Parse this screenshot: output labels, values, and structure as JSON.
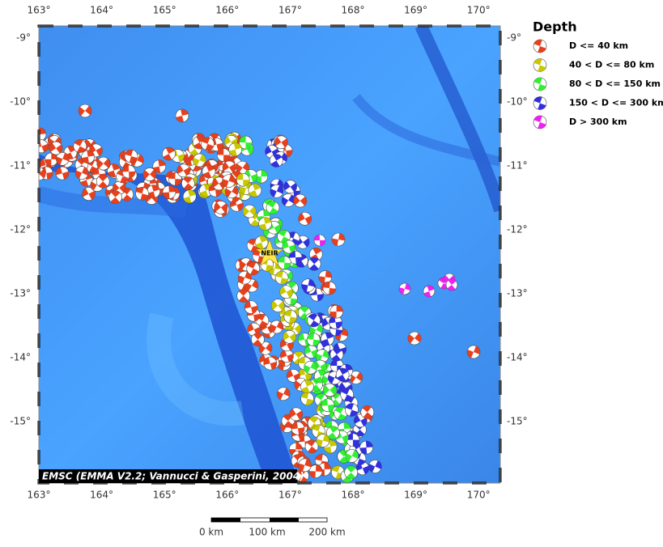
{
  "map": {
    "lon_labels": [
      "163°",
      "164°",
      "165°",
      "166°",
      "167°",
      "168°",
      "169°",
      "170°"
    ],
    "lat_labels": [
      "-9°",
      "-10°",
      "-11°",
      "-12°",
      "-13°",
      "-14°",
      "-15°"
    ],
    "legend": {
      "title": "Depth",
      "items": [
        {
          "label": "D <= 40 km",
          "color": "#e8401c"
        },
        {
          "label": "40 < D <= 80 km",
          "color": "#c8c800"
        },
        {
          "label": "80 < D <= 150 km",
          "color": "#30f030"
        },
        {
          "label": "150 < D <= 300 km",
          "color": "#3030e0"
        },
        {
          "label": "D > 300 km",
          "color": "#f020f0"
        }
      ]
    },
    "station": "NEIR",
    "credit": "EMSC (EMMA V2.2; Vannucci & Gasperini, 2004)",
    "scale_labels": [
      "0 km",
      "100 km",
      "200 km"
    ]
  }
}
